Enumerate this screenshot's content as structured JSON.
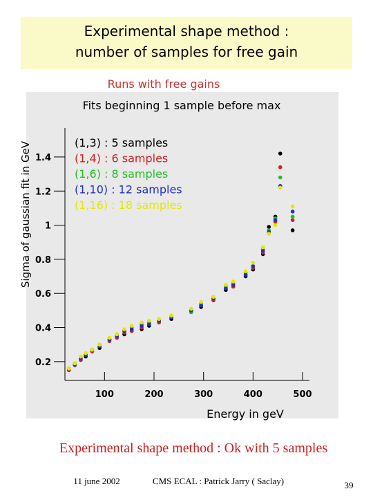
{
  "slide": {
    "title_lines": [
      "Experimental shape method :",
      "number of samples for free gain"
    ],
    "conclusion": "Experimental shape method : Ok with 5 samples",
    "date": "11 june 2002",
    "footer_center": "CMS ECAL : Patrick Jarry ( Saclay)",
    "page_number": "39"
  },
  "chart_data": {
    "type": "scatter",
    "title": "Runs with free gains",
    "subtitle": "Fits beginning 1 sample before max",
    "x_label": "Energy in geV",
    "y_label": "Sigma of gaussian fit in GeV",
    "x": [
      28,
      40,
      52,
      62,
      75,
      90,
      110,
      125,
      140,
      155,
      175,
      190,
      210,
      235,
      275,
      295,
      320,
      345,
      360,
      385,
      400,
      420,
      432,
      445,
      455,
      480
    ],
    "series": [
      {
        "name": "(1,3) : 5 samples",
        "color": "#000000",
        "values": [
          0.15,
          0.18,
          0.21,
          0.23,
          0.26,
          0.28,
          0.33,
          0.35,
          0.36,
          0.38,
          0.39,
          0.41,
          0.43,
          0.45,
          0.49,
          0.52,
          0.56,
          0.62,
          0.64,
          0.7,
          0.74,
          0.83,
          0.99,
          1.05,
          1.42,
          0.97
        ]
      },
      {
        "name": "(1,4) : 6 samples",
        "color": "#d42020",
        "values": [
          0.15,
          0.19,
          0.21,
          0.24,
          0.26,
          0.29,
          0.32,
          0.34,
          0.37,
          0.38,
          0.4,
          0.42,
          0.43,
          0.46,
          0.5,
          0.53,
          0.56,
          0.63,
          0.64,
          0.71,
          0.75,
          0.84,
          0.96,
          1.02,
          1.34,
          1.03
        ]
      },
      {
        "name": "(1,6) : 8 samples",
        "color": "#22c022",
        "values": [
          0.16,
          0.19,
          0.22,
          0.24,
          0.27,
          0.3,
          0.33,
          0.36,
          0.38,
          0.4,
          0.42,
          0.43,
          0.44,
          0.47,
          0.49,
          0.54,
          0.57,
          0.64,
          0.66,
          0.72,
          0.76,
          0.86,
          0.97,
          1.04,
          1.28,
          1.05
        ]
      },
      {
        "name": "(1,10) : 12 samples",
        "color": "#2030c0",
        "values": [
          0.16,
          0.18,
          0.22,
          0.24,
          0.27,
          0.29,
          0.33,
          0.35,
          0.38,
          0.39,
          0.41,
          0.42,
          0.44,
          0.46,
          0.5,
          0.53,
          0.57,
          0.63,
          0.65,
          0.71,
          0.76,
          0.85,
          0.96,
          1.03,
          1.23,
          1.08
        ]
      },
      {
        "name": "(1,16) : 18 samples",
        "color": "#e6e600",
        "values": [
          0.16,
          0.19,
          0.23,
          0.25,
          0.27,
          0.3,
          0.34,
          0.36,
          0.39,
          0.41,
          0.43,
          0.44,
          0.45,
          0.47,
          0.51,
          0.55,
          0.58,
          0.65,
          0.67,
          0.73,
          0.78,
          0.87,
          0.95,
          1.0,
          1.22,
          1.11
        ]
      }
    ],
    "xlim": [
      20,
      500
    ],
    "xticks": [
      100,
      200,
      300,
      400,
      500
    ],
    "ylim": [
      0.09,
      1.57
    ],
    "yticks": [
      0.2,
      0.4,
      0.6,
      0.8,
      1,
      1.2,
      1.4
    ]
  }
}
